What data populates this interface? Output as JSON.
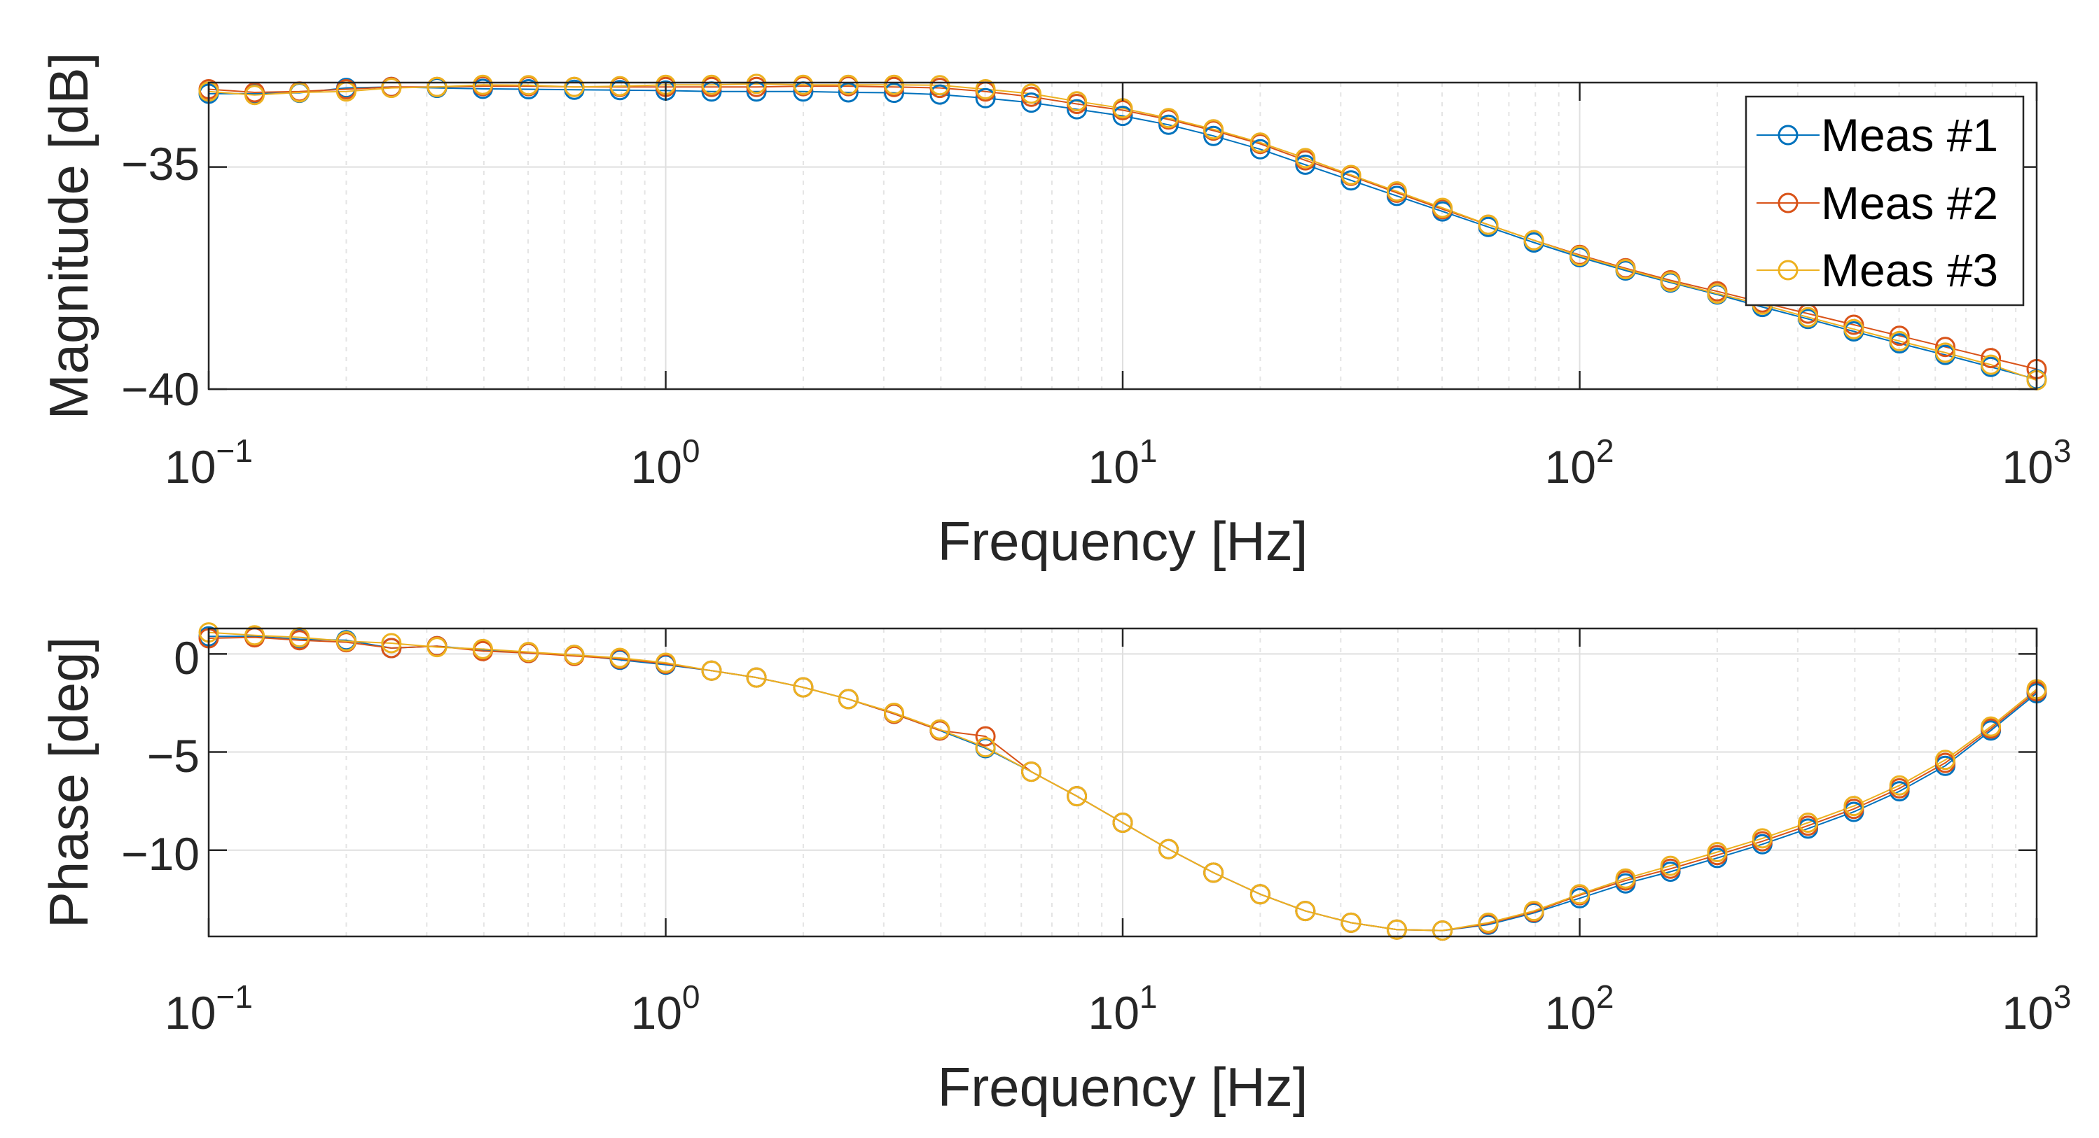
{
  "chart_data": [
    {
      "type": "line",
      "xscale": "log",
      "xlim": [
        0.1,
        1000
      ],
      "ylim": [
        -40,
        -33.1
      ],
      "xlabel": "Frequency [Hz]",
      "ylabel": "Magnitude [dB]",
      "xticks": [
        {
          "base": "10",
          "exp": "−1"
        },
        {
          "base": "10",
          "exp": "0"
        },
        {
          "base": "10",
          "exp": "1"
        },
        {
          "base": "10",
          "exp": "2"
        },
        {
          "base": "10",
          "exp": "3"
        }
      ],
      "yticks": [
        {
          "value": -35,
          "label": "−35"
        },
        {
          "value": -40,
          "label": "−40"
        }
      ],
      "grid": true,
      "legend": {
        "position": "top-right",
        "entries": [
          "Meas #1",
          "Meas #2",
          "Meas #3"
        ]
      },
      "x": [
        0.1,
        0.126,
        0.158,
        0.2,
        0.251,
        0.316,
        0.398,
        0.501,
        0.631,
        0.794,
        1.0,
        1.26,
        1.58,
        2.0,
        2.51,
        3.16,
        3.98,
        5.01,
        6.31,
        7.94,
        10.0,
        12.6,
        15.8,
        20.0,
        25.1,
        31.6,
        39.8,
        50.1,
        63.1,
        79.4,
        100,
        126,
        158,
        200,
        251,
        316,
        398,
        501,
        631,
        794,
        1000
      ],
      "series": [
        {
          "name": "Meas #1",
          "color": "#0072BD",
          "values": [
            -33.35,
            -33.35,
            -33.33,
            -33.22,
            -33.2,
            -33.22,
            -33.24,
            -33.25,
            -33.26,
            -33.27,
            -33.28,
            -33.3,
            -33.3,
            -33.3,
            -33.32,
            -33.33,
            -33.37,
            -33.45,
            -33.55,
            -33.7,
            -33.85,
            -34.05,
            -34.3,
            -34.6,
            -34.95,
            -35.3,
            -35.65,
            -36.0,
            -36.35,
            -36.7,
            -37.03,
            -37.33,
            -37.6,
            -37.87,
            -38.15,
            -38.42,
            -38.7,
            -38.97,
            -39.23,
            -39.5,
            -39.78
          ]
        },
        {
          "name": "Meas #2",
          "color": "#D95319",
          "values": [
            -33.25,
            -33.32,
            -33.3,
            -33.25,
            -33.2,
            -33.2,
            -33.18,
            -33.18,
            -33.2,
            -33.2,
            -33.2,
            -33.2,
            -33.2,
            -33.18,
            -33.18,
            -33.2,
            -33.22,
            -33.3,
            -33.42,
            -33.58,
            -33.72,
            -33.93,
            -34.18,
            -34.48,
            -34.85,
            -35.2,
            -35.58,
            -35.95,
            -36.3,
            -36.65,
            -36.98,
            -37.28,
            -37.55,
            -37.8,
            -38.05,
            -38.3,
            -38.55,
            -38.8,
            -39.05,
            -39.3,
            -39.55
          ]
        },
        {
          "name": "Meas #3",
          "color": "#EDB120",
          "values": [
            -33.3,
            -33.38,
            -33.32,
            -33.3,
            -33.22,
            -33.2,
            -33.15,
            -33.16,
            -33.2,
            -33.18,
            -33.15,
            -33.15,
            -33.13,
            -33.15,
            -33.15,
            -33.15,
            -33.16,
            -33.25,
            -33.35,
            -33.52,
            -33.68,
            -33.9,
            -34.15,
            -34.45,
            -34.8,
            -35.18,
            -35.55,
            -35.92,
            -36.3,
            -36.65,
            -37.0,
            -37.3,
            -37.58,
            -37.85,
            -38.1,
            -38.38,
            -38.65,
            -38.92,
            -39.18,
            -39.45,
            -39.8
          ]
        }
      ]
    },
    {
      "type": "line",
      "xscale": "log",
      "xlim": [
        0.1,
        1000
      ],
      "ylim": [
        -14.4,
        1.3
      ],
      "xlabel": "Frequency [Hz]",
      "ylabel": "Phase [deg]",
      "xticks": [
        {
          "base": "10",
          "exp": "−1"
        },
        {
          "base": "10",
          "exp": "0"
        },
        {
          "base": "10",
          "exp": "1"
        },
        {
          "base": "10",
          "exp": "2"
        },
        {
          "base": "10",
          "exp": "3"
        }
      ],
      "yticks": [
        {
          "value": 0,
          "label": "0"
        },
        {
          "value": -5,
          "label": "−5"
        },
        {
          "value": -10,
          "label": "−10"
        }
      ],
      "grid": true,
      "x": [
        0.1,
        0.126,
        0.158,
        0.2,
        0.251,
        0.316,
        0.398,
        0.501,
        0.631,
        0.794,
        1.0,
        1.26,
        1.58,
        2.0,
        2.51,
        3.16,
        3.98,
        5.01,
        6.31,
        7.94,
        10.0,
        12.6,
        15.8,
        20.0,
        25.1,
        31.6,
        39.8,
        50.1,
        63.1,
        79.4,
        100,
        126,
        158,
        200,
        251,
        316,
        398,
        501,
        631,
        794,
        1000
      ],
      "series": [
        {
          "name": "Meas #1",
          "color": "#0072BD",
          "values": [
            0.9,
            0.9,
            0.75,
            0.7,
            0.3,
            0.4,
            0.2,
            0.05,
            -0.05,
            -0.3,
            -0.55,
            -0.85,
            -1.2,
            -1.7,
            -2.3,
            -3.05,
            -3.9,
            -4.8,
            -6.0,
            -7.25,
            -8.6,
            -9.95,
            -11.15,
            -12.25,
            -13.1,
            -13.7,
            -14.05,
            -14.1,
            -13.8,
            -13.2,
            -12.45,
            -11.7,
            -11.1,
            -10.4,
            -9.7,
            -8.9,
            -8.05,
            -7.0,
            -5.7,
            -3.9,
            -2.0
          ]
        },
        {
          "name": "Meas #2",
          "color": "#D95319",
          "values": [
            0.8,
            0.85,
            0.7,
            0.6,
            0.3,
            0.4,
            0.15,
            0.05,
            -0.1,
            -0.25,
            -0.5,
            -0.85,
            -1.2,
            -1.7,
            -2.3,
            -3.05,
            -3.9,
            -4.2,
            -6.0,
            -7.25,
            -8.6,
            -9.95,
            -11.15,
            -12.25,
            -13.1,
            -13.7,
            -14.05,
            -14.1,
            -13.75,
            -13.15,
            -12.3,
            -11.55,
            -10.95,
            -10.25,
            -9.55,
            -8.75,
            -7.9,
            -6.85,
            -5.55,
            -3.8,
            -1.9
          ]
        },
        {
          "name": "Meas #3",
          "color": "#EDB120",
          "values": [
            1.1,
            0.95,
            0.85,
            0.65,
            0.55,
            0.35,
            0.25,
            0.1,
            -0.05,
            -0.2,
            -0.45,
            -0.85,
            -1.2,
            -1.7,
            -2.3,
            -3.0,
            -3.85,
            -4.75,
            -6.0,
            -7.25,
            -8.6,
            -9.95,
            -11.15,
            -12.25,
            -13.1,
            -13.7,
            -14.05,
            -14.1,
            -13.7,
            -13.1,
            -12.25,
            -11.45,
            -10.8,
            -10.1,
            -9.4,
            -8.6,
            -7.75,
            -6.7,
            -5.4,
            -3.7,
            -1.8
          ]
        }
      ]
    }
  ]
}
